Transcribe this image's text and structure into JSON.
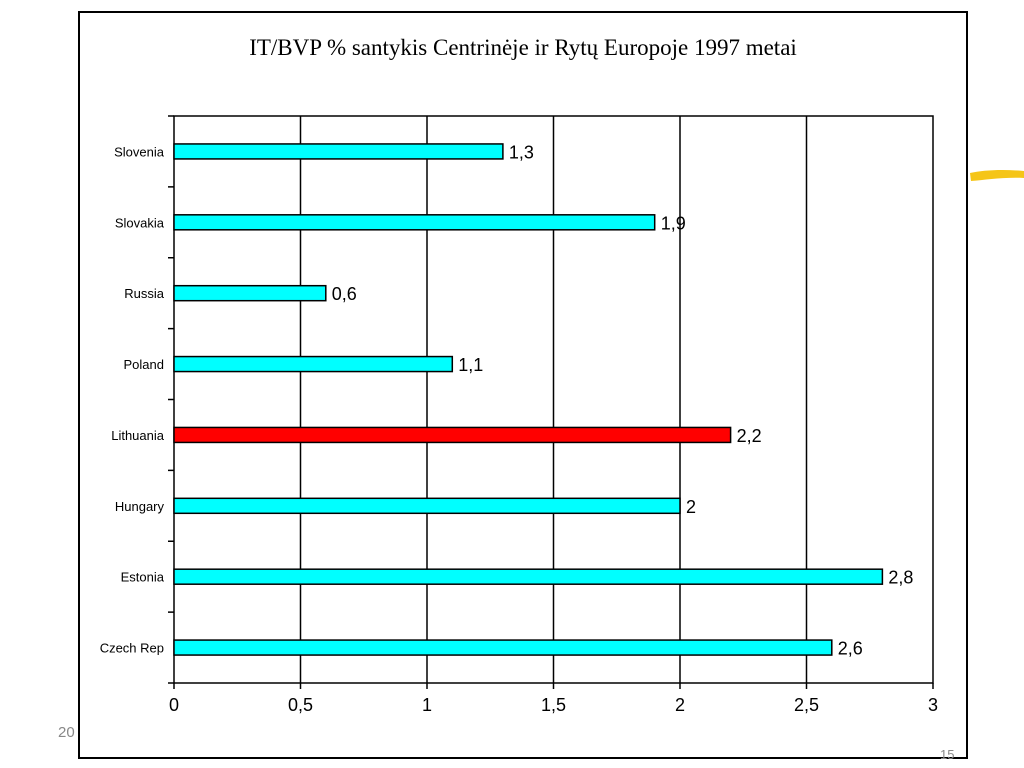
{
  "chart_data": {
    "type": "bar",
    "orientation": "horizontal",
    "title": "IT/BVP % santykis Centrinėje ir Rytų Europoje 1997 metai",
    "xlabel": "",
    "ylabel": "",
    "categories": [
      "Slovenia",
      "Slovakia",
      "Russia",
      "Poland",
      "Lithuania",
      "Hungary",
      "Estonia",
      "Czech Rep"
    ],
    "values": [
      1.3,
      1.9,
      0.6,
      1.1,
      2.2,
      2,
      2.8,
      2.6
    ],
    "data_labels": [
      "1,3",
      "1,9",
      "0,6",
      "1,1",
      "2,2",
      "2",
      "2,8",
      "2,6"
    ],
    "xlim": [
      0,
      3
    ],
    "x_ticks": [
      0,
      0.5,
      1,
      1.5,
      2,
      2.5,
      3
    ],
    "x_tick_labels": [
      "0",
      "0,5",
      "1",
      "1,5",
      "2",
      "2,5",
      "3"
    ],
    "grid": "vertical",
    "legend": "none",
    "bar_color": "#00FFFF",
    "highlight_category": "Lithuania",
    "highlight_color": "#FF0000"
  },
  "footer": {
    "left_text": "20",
    "right_text": "15"
  },
  "decoration": {
    "stroke_color": "#F5C518"
  }
}
